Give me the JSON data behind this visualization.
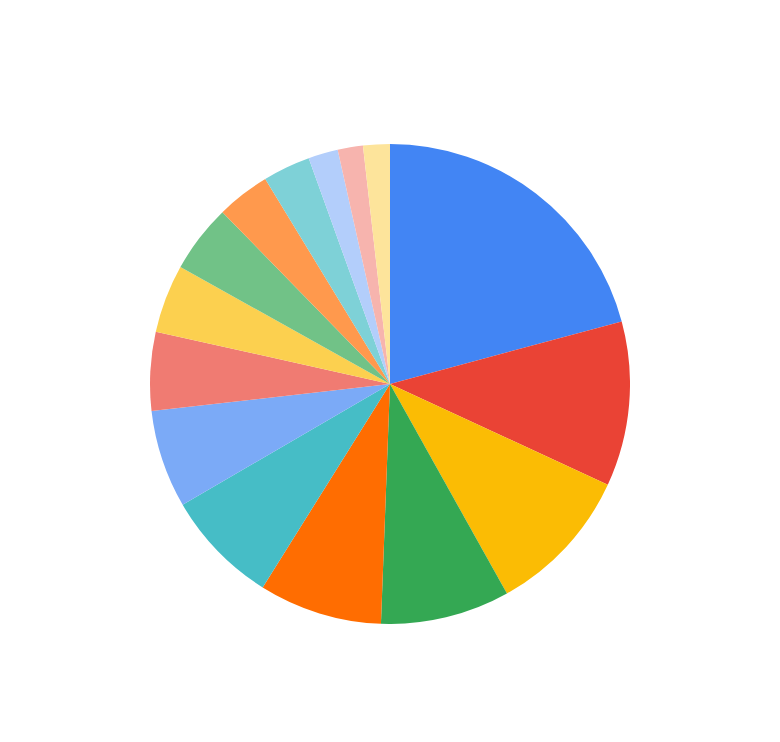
{
  "chart_data": {
    "type": "pie",
    "categories": [
      null,
      null,
      null,
      null,
      null,
      null,
      null,
      null,
      null,
      null,
      null,
      null,
      null,
      null,
      null
    ],
    "values": [
      20.8,
      11.1,
      10,
      8.7,
      8.3,
      7.7,
      6.6,
      5.3,
      4.6,
      4.6,
      3.6,
      3.2,
      2,
      1.7,
      1.8
    ],
    "colors": [
      "#4285f4",
      "#ea4335",
      "#fbbc04",
      "#34a853",
      "#ff6d01",
      "#46bdc6",
      "#7baaf7",
      "#f07b72",
      "#fcd04f",
      "#71c287",
      "#ff994d",
      "#7ed1d7",
      "#b3cefb",
      "#f7b4ae",
      "#fde49b"
    ],
    "legend": false
  }
}
